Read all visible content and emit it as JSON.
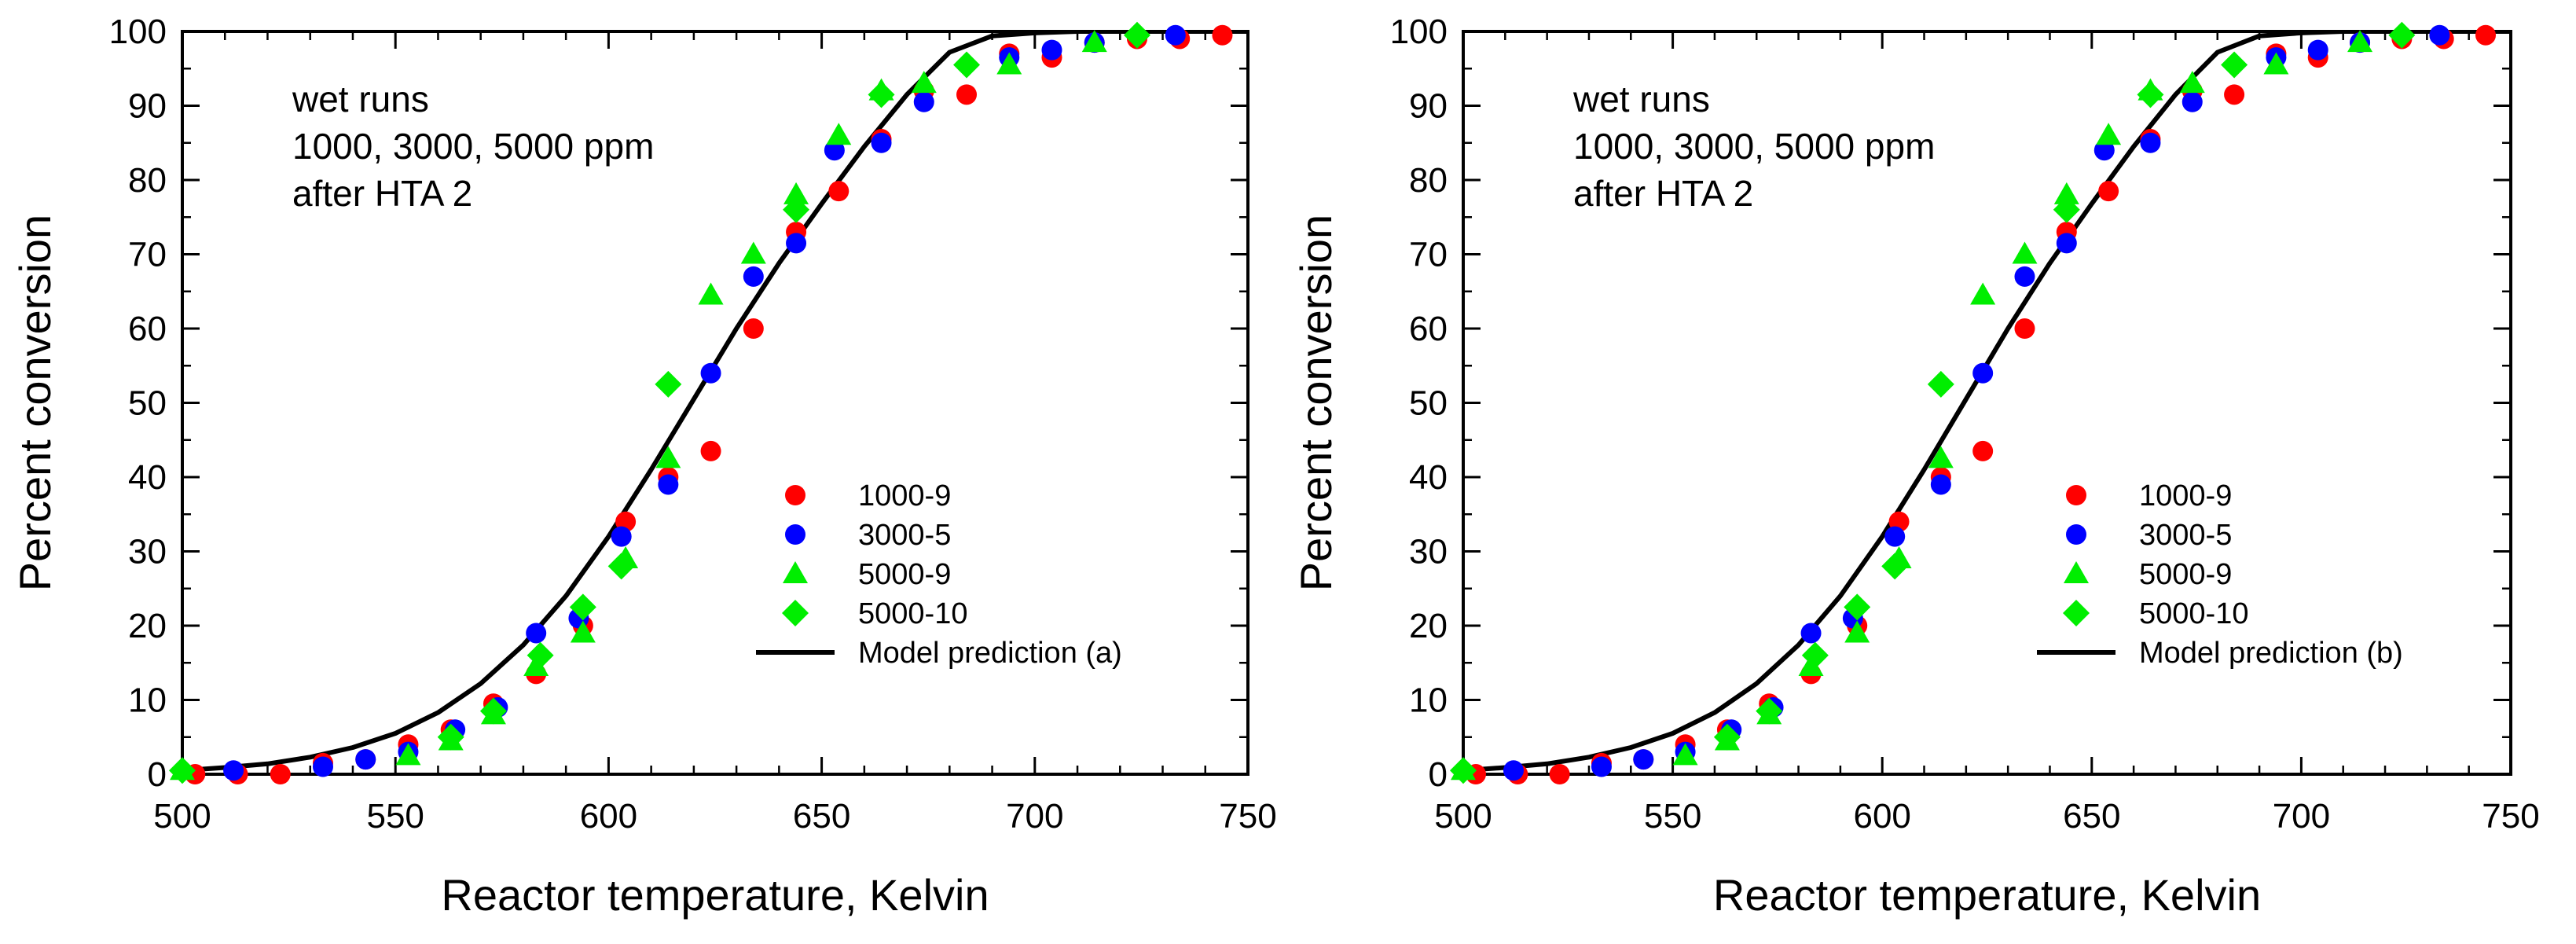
{
  "chart_data": [
    {
      "type": "scatter",
      "xlabel": "Reactor temperature, Kelvin",
      "ylabel": "Percent conversion",
      "xlim": [
        500,
        750
      ],
      "ylim": [
        0,
        100
      ],
      "xticks": [
        "500",
        "550",
        "600",
        "650",
        "700",
        "750"
      ],
      "yticks": [
        "0",
        "10",
        "20",
        "30",
        "40",
        "50",
        "60",
        "70",
        "80",
        "90",
        "100"
      ],
      "annotation": [
        "wet runs",
        "1000, 3000, 5000 ppm",
        "after HTA 2"
      ],
      "legend_position": "right-center",
      "series": [
        {
          "name": "1000-9",
          "marker": "circle",
          "color": "#ff0000",
          "x": [
            503,
            513,
            523,
            533,
            543,
            553,
            563,
            573,
            583,
            594,
            604,
            614,
            624,
            634,
            644,
            654,
            664,
            674,
            684,
            694,
            704,
            714,
            724,
            734,
            744
          ],
          "y": [
            0,
            0,
            0,
            1.5,
            2,
            4,
            6,
            9.5,
            13.5,
            20,
            34,
            40,
            43.5,
            60,
            73,
            78.5,
            85.5,
            92,
            91.5,
            97,
            96.5,
            98.5,
            99,
            99,
            99.5
          ]
        },
        {
          "name": "3000-5",
          "marker": "circle",
          "color": "#0000ff",
          "x": [
            512,
            533,
            543,
            553,
            564,
            574,
            583,
            593,
            603,
            614,
            624,
            634,
            644,
            653,
            664,
            674,
            694,
            704,
            714,
            733
          ],
          "y": [
            0.5,
            1,
            2,
            3,
            6,
            9,
            19,
            21,
            32,
            39,
            54,
            67,
            71.5,
            84,
            85,
            90.5,
            96.5,
            97.5,
            98.5,
            99.5
          ]
        },
        {
          "name": "5000-9",
          "marker": "triangle",
          "color": "#00ee00",
          "x": [
            500,
            553,
            563,
            573,
            583,
            594,
            604,
            614,
            624,
            634,
            644,
            654,
            664,
            674,
            694,
            714
          ],
          "y": [
            0.5,
            2.5,
            4.5,
            8,
            14.5,
            19,
            29,
            42.5,
            64.5,
            70,
            78,
            86,
            92,
            93,
            95.5,
            98.5
          ]
        },
        {
          "name": "5000-10",
          "marker": "diamond",
          "color": "#00ee00",
          "x": [
            500,
            563,
            573,
            584,
            594,
            603,
            614,
            644,
            664,
            684,
            724
          ],
          "y": [
            0.5,
            5,
            8.5,
            16,
            22.5,
            28,
            52.5,
            76,
            91.5,
            95.5,
            99.5
          ]
        },
        {
          "name": "Model prediction (a)",
          "type": "line",
          "color": "#000000",
          "x": [
            500,
            510,
            520,
            530,
            540,
            550,
            560,
            570,
            580,
            590,
            600,
            610,
            620,
            630,
            640,
            650,
            660,
            670,
            680,
            690,
            700,
            710,
            720,
            730,
            740,
            750
          ],
          "y": [
            0.5,
            0.9,
            1.4,
            2.3,
            3.6,
            5.5,
            8.3,
            12.2,
            17.4,
            24,
            32,
            41,
            50.5,
            60,
            68.8,
            76.8,
            84.5,
            91.5,
            97.2,
            99.4,
            99.8,
            100,
            100,
            100,
            100,
            100
          ]
        }
      ]
    },
    {
      "type": "scatter",
      "xlabel": "Reactor temperature, Kelvin",
      "ylabel": "Percent conversion",
      "xlim": [
        500,
        750
      ],
      "ylim": [
        0,
        100
      ],
      "xticks": [
        "500",
        "550",
        "600",
        "650",
        "700",
        "750"
      ],
      "yticks": [
        "0",
        "10",
        "20",
        "30",
        "40",
        "50",
        "60",
        "70",
        "80",
        "90",
        "100"
      ],
      "annotation": [
        "wet runs",
        "1000, 3000, 5000 ppm",
        "after HTA 2"
      ],
      "legend_position": "right-center",
      "series": [
        {
          "name": "1000-9",
          "marker": "circle",
          "color": "#ff0000",
          "x": [
            503,
            513,
            523,
            533,
            543,
            553,
            563,
            573,
            583,
            594,
            604,
            614,
            624,
            634,
            644,
            654,
            664,
            674,
            684,
            694,
            704,
            714,
            724,
            734,
            744
          ],
          "y": [
            0,
            0,
            0,
            1.5,
            2,
            4,
            6,
            9.5,
            13.5,
            20,
            34,
            40,
            43.5,
            60,
            73,
            78.5,
            85.5,
            92,
            91.5,
            97,
            96.5,
            98.5,
            99,
            99,
            99.5
          ]
        },
        {
          "name": "3000-5",
          "marker": "circle",
          "color": "#0000ff",
          "x": [
            512,
            533,
            543,
            553,
            564,
            574,
            583,
            593,
            603,
            614,
            624,
            634,
            644,
            653,
            664,
            674,
            694,
            704,
            714,
            733
          ],
          "y": [
            0.5,
            1,
            2,
            3,
            6,
            9,
            19,
            21,
            32,
            39,
            54,
            67,
            71.5,
            84,
            85,
            90.5,
            96.5,
            97.5,
            98.5,
            99.5
          ]
        },
        {
          "name": "5000-9",
          "marker": "triangle",
          "color": "#00ee00",
          "x": [
            500,
            553,
            563,
            573,
            583,
            594,
            604,
            614,
            624,
            634,
            644,
            654,
            664,
            674,
            694,
            714
          ],
          "y": [
            0.5,
            2.5,
            4.5,
            8,
            14.5,
            19,
            29,
            42.5,
            64.5,
            70,
            78,
            86,
            92,
            93,
            95.5,
            98.5
          ]
        },
        {
          "name": "5000-10",
          "marker": "diamond",
          "color": "#00ee00",
          "x": [
            500,
            563,
            573,
            584,
            594,
            603,
            614,
            644,
            664,
            684,
            724
          ],
          "y": [
            0.5,
            5,
            8.5,
            16,
            22.5,
            28,
            52.5,
            76,
            91.5,
            95.5,
            99.5
          ]
        },
        {
          "name": "Model prediction (b)",
          "type": "line",
          "color": "#000000",
          "x": [
            500,
            510,
            520,
            530,
            540,
            550,
            560,
            570,
            580,
            590,
            600,
            610,
            620,
            630,
            640,
            650,
            660,
            670,
            680,
            690,
            700,
            710,
            720,
            730,
            740,
            750
          ],
          "y": [
            0.5,
            0.9,
            1.4,
            2.3,
            3.6,
            5.5,
            8.3,
            12.2,
            17.4,
            24,
            32,
            41,
            50.5,
            60,
            68.8,
            76.8,
            84.5,
            91.5,
            97.2,
            99.4,
            99.8,
            100,
            100,
            100,
            100,
            100
          ]
        }
      ]
    }
  ]
}
